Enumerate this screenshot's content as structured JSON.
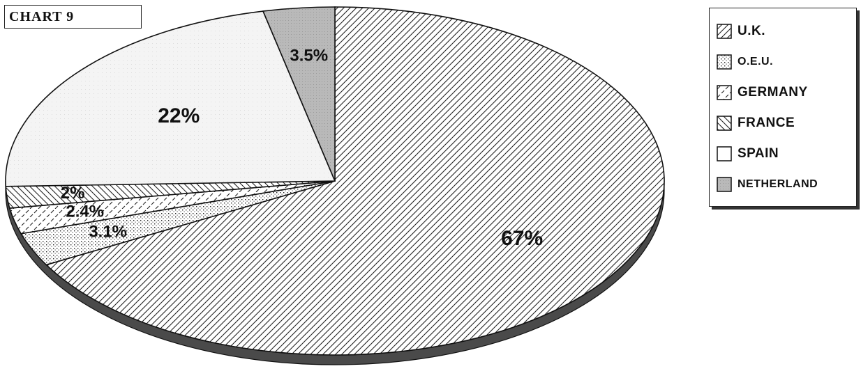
{
  "chart_data": {
    "type": "pie",
    "title": "CHART 9",
    "slices": [
      {
        "name": "U.K.",
        "value": 67,
        "label": "67%",
        "pattern": "diag-fwd"
      },
      {
        "name": "O.E.U.",
        "value": 3.1,
        "label": "3.1%",
        "pattern": "dots"
      },
      {
        "name": "GERMANY",
        "value": 2.4,
        "label": "2.4%",
        "pattern": "dashes"
      },
      {
        "name": "FRANCE",
        "value": 2,
        "label": "2%",
        "pattern": "diag-back"
      },
      {
        "name": "SPAIN",
        "value": 22,
        "label": "22%",
        "pattern": "light"
      },
      {
        "name": "NETHERLAND",
        "value": 3.5,
        "label": "3.5%",
        "pattern": "gray"
      }
    ],
    "legend": {
      "placement": "right"
    },
    "style": "3d-oval"
  },
  "colors": {
    "ink": "#111111",
    "netherland_fill": "#b9b9b9",
    "spain_fill": "#f3f3f3",
    "shadow": "#4a4a4a"
  }
}
